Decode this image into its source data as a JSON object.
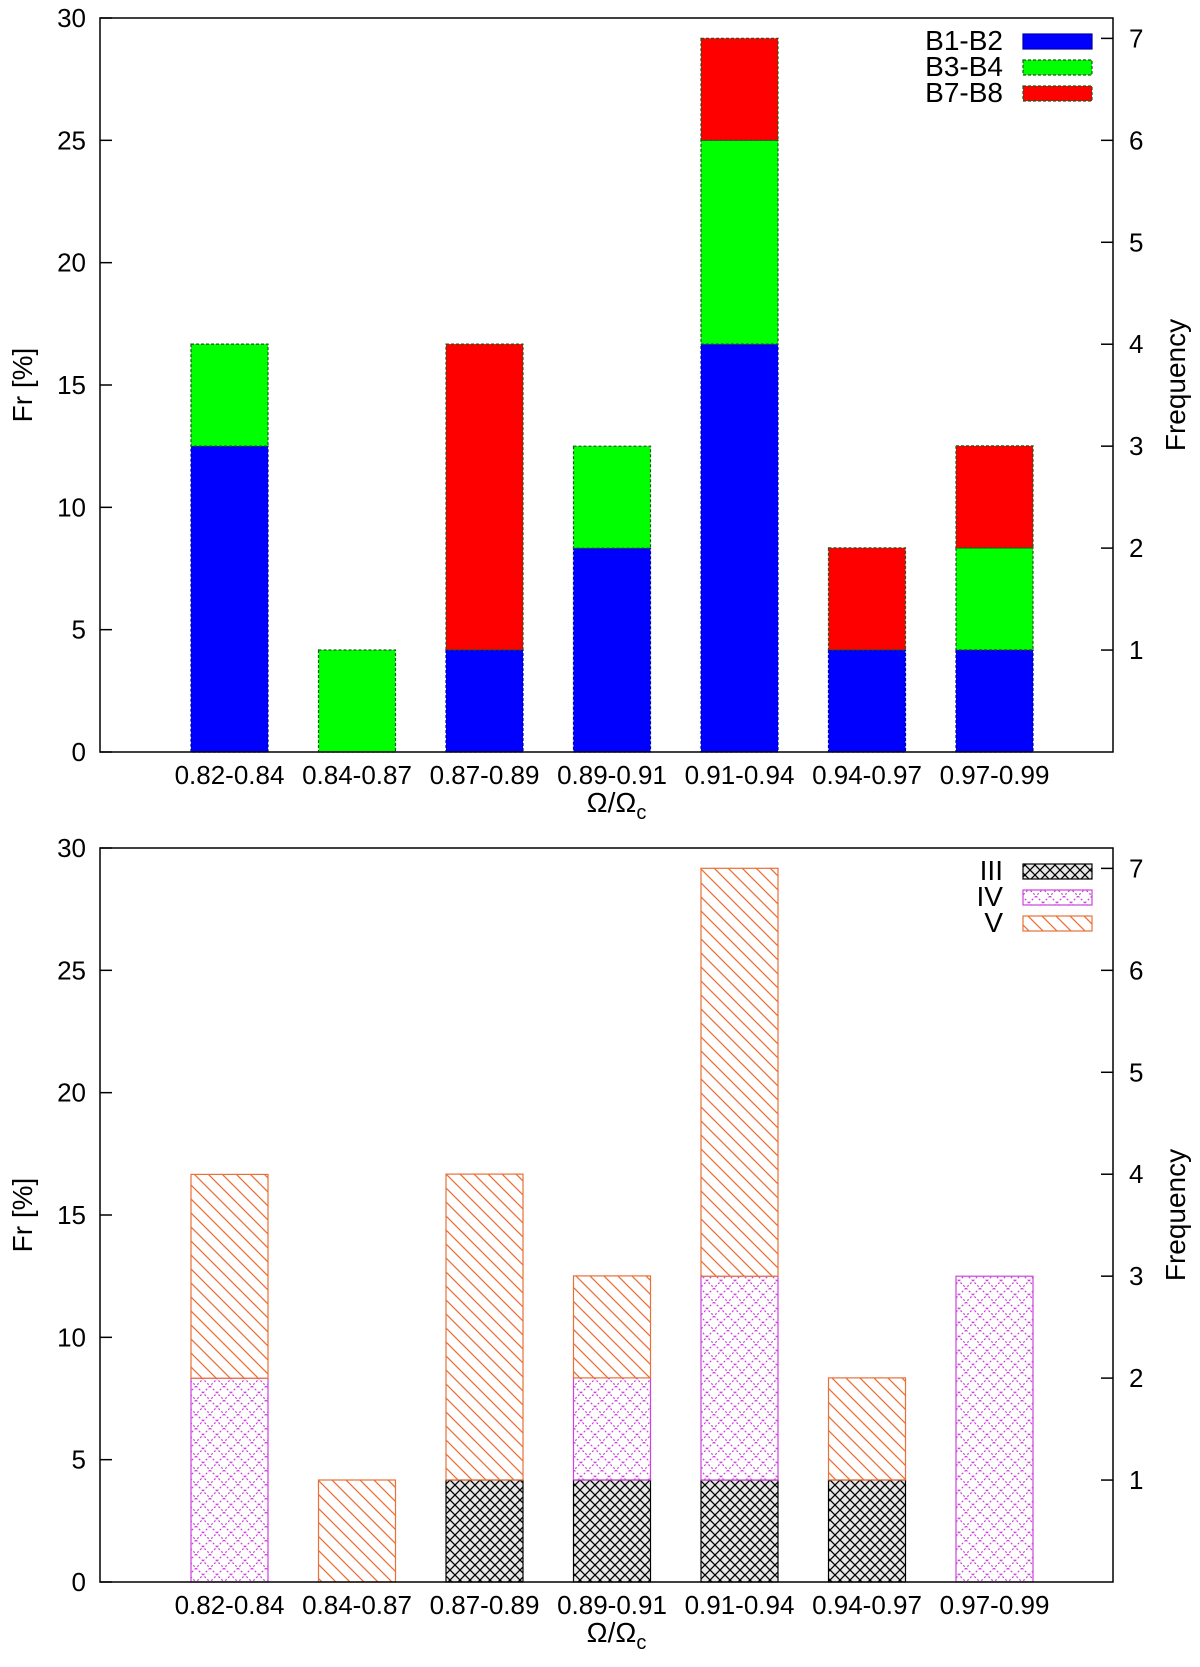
{
  "chart_data": [
    {
      "type": "bar",
      "stacked": true,
      "categories": [
        "0.82-0.84",
        "0.84-0.87",
        "0.87-0.89",
        "0.89-0.91",
        "0.91-0.94",
        "0.94-0.97",
        "0.97-0.99"
      ],
      "series": [
        {
          "name": "B1-B2",
          "color": "#0000ff",
          "fill": "solid",
          "values": [
            12.5,
            0,
            4.17,
            8.33,
            16.67,
            4.17,
            4.17
          ]
        },
        {
          "name": "B3-B4",
          "color": "#00ff00",
          "fill": "solid",
          "values": [
            4.17,
            4.17,
            0,
            4.17,
            8.33,
            0,
            4.17
          ]
        },
        {
          "name": "B7-B8",
          "color": "#ff0000",
          "fill": "solid",
          "values": [
            0,
            0,
            12.5,
            0,
            4.17,
            4.17,
            4.17
          ]
        }
      ],
      "xlabel": "Ω/Ω",
      "xlabel_sub": "c",
      "ylabel": "Fr [%]",
      "y2label": "Frequency",
      "ylim": [
        0,
        30
      ],
      "yticks": [
        0,
        5,
        10,
        15,
        20,
        25,
        30
      ],
      "y2lim": [
        0,
        7.2
      ],
      "y2ticks": [
        1,
        2,
        3,
        4,
        5,
        6,
        7
      ],
      "legend_position": "top-right"
    },
    {
      "type": "bar",
      "stacked": true,
      "categories": [
        "0.82-0.84",
        "0.84-0.87",
        "0.87-0.89",
        "0.89-0.91",
        "0.91-0.94",
        "0.94-0.97",
        "0.97-0.99"
      ],
      "series": [
        {
          "name": "III",
          "color": "#000000",
          "fill": "crosshatch",
          "values": [
            0,
            0,
            4.17,
            4.17,
            4.17,
            4.17,
            0
          ]
        },
        {
          "name": "IV",
          "color": "#cc44dd",
          "fill": "dotted-crosshatch",
          "values": [
            8.33,
            0,
            0,
            4.17,
            8.33,
            0,
            12.5
          ]
        },
        {
          "name": "V",
          "color": "#e8703a",
          "fill": "diagonal",
          "values": [
            8.33,
            4.17,
            12.5,
            4.17,
            16.67,
            4.17,
            0
          ]
        }
      ],
      "xlabel": "Ω/Ω",
      "xlabel_sub": "c",
      "ylabel": "Fr [%]",
      "y2label": "Frequency",
      "ylim": [
        0,
        30
      ],
      "yticks": [
        0,
        5,
        10,
        15,
        20,
        25,
        30
      ],
      "y2lim": [
        0,
        7.2
      ],
      "y2ticks": [
        1,
        2,
        3,
        4,
        5,
        6,
        7
      ],
      "legend_position": "top-right"
    }
  ]
}
